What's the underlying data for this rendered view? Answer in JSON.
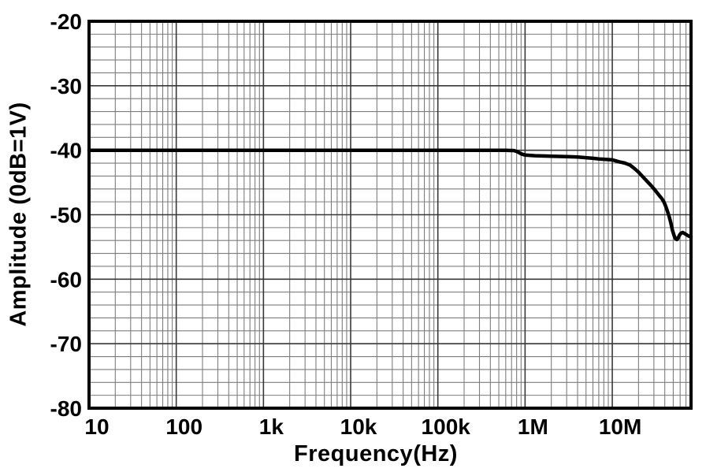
{
  "page": {
    "background": "#ffffff"
  },
  "chart_data": {
    "type": "line",
    "title": "",
    "xlabel": "Frequency(Hz)",
    "ylabel": "Amplitude (0dB=1V)",
    "x_scale": "log",
    "y_scale": "linear",
    "xlim": [
      10,
      80000000
    ],
    "ylim": [
      -80,
      -20
    ],
    "grid": "major-and-minor",
    "legend": "none",
    "x_ticks": [
      {
        "value": 10,
        "label": "10"
      },
      {
        "value": 100,
        "label": "100"
      },
      {
        "value": 1000,
        "label": "1k"
      },
      {
        "value": 10000,
        "label": "10k"
      },
      {
        "value": 100000,
        "label": "100k"
      },
      {
        "value": 1000000,
        "label": "1M"
      },
      {
        "value": 10000000,
        "label": "10M"
      }
    ],
    "y_ticks": [
      {
        "value": -20,
        "label": "-20"
      },
      {
        "value": -30,
        "label": "-30"
      },
      {
        "value": -40,
        "label": "-40"
      },
      {
        "value": -50,
        "label": "-50"
      },
      {
        "value": -60,
        "label": "-60"
      },
      {
        "value": -70,
        "label": "-70"
      },
      {
        "value": -80,
        "label": "-80"
      }
    ],
    "y_minor_step_db": 2,
    "colors": {
      "line": "#000000",
      "border": "#000000",
      "grid_major": "#383838",
      "grid_minor": "#7d7d7d",
      "text": "#000000",
      "background": "#ffffff"
    },
    "line_width": 4.5,
    "series": [
      {
        "name": "amplitude-response",
        "points": [
          [
            10,
            -40
          ],
          [
            30,
            -40
          ],
          [
            100,
            -40
          ],
          [
            300,
            -40
          ],
          [
            1000,
            -40
          ],
          [
            3000,
            -40
          ],
          [
            10000,
            -40
          ],
          [
            30000,
            -40
          ],
          [
            100000,
            -40
          ],
          [
            200000,
            -40
          ],
          [
            400000,
            -40
          ],
          [
            600000,
            -40
          ],
          [
            750000,
            -40.05
          ],
          [
            820000,
            -40.25
          ],
          [
            900000,
            -40.55
          ],
          [
            1000000,
            -40.75
          ],
          [
            1300000,
            -40.85
          ],
          [
            1700000,
            -40.9
          ],
          [
            2200000,
            -40.95
          ],
          [
            3000000,
            -41.0
          ],
          [
            4000000,
            -41.05
          ],
          [
            5000000,
            -41.15
          ],
          [
            6000000,
            -41.25
          ],
          [
            7000000,
            -41.35
          ],
          [
            8000000,
            -41.4
          ],
          [
            9000000,
            -41.45
          ],
          [
            10000000,
            -41.5
          ],
          [
            11000000,
            -41.65
          ],
          [
            12000000,
            -41.8
          ],
          [
            13000000,
            -41.9
          ],
          [
            14000000,
            -42.0
          ],
          [
            15000000,
            -42.15
          ],
          [
            16000000,
            -42.3
          ],
          [
            18000000,
            -42.85
          ],
          [
            20000000,
            -43.4
          ],
          [
            22000000,
            -44.0
          ],
          [
            25000000,
            -44.8
          ],
          [
            28000000,
            -45.5
          ],
          [
            31000000,
            -46.2
          ],
          [
            34000000,
            -46.9
          ],
          [
            37000000,
            -47.5
          ],
          [
            39000000,
            -48.0
          ],
          [
            41000000,
            -48.7
          ],
          [
            43000000,
            -49.5
          ],
          [
            45000000,
            -50.3
          ],
          [
            47000000,
            -51.3
          ],
          [
            49000000,
            -52.4
          ],
          [
            51000000,
            -53.2
          ],
          [
            53000000,
            -53.7
          ],
          [
            55000000,
            -53.85
          ],
          [
            57000000,
            -53.6
          ],
          [
            59000000,
            -53.15
          ],
          [
            61000000,
            -52.9
          ],
          [
            64000000,
            -52.75
          ],
          [
            67000000,
            -52.9
          ],
          [
            71000000,
            -53.1
          ],
          [
            75000000,
            -53.3
          ],
          [
            80000000,
            -53.45
          ]
        ]
      }
    ]
  }
}
